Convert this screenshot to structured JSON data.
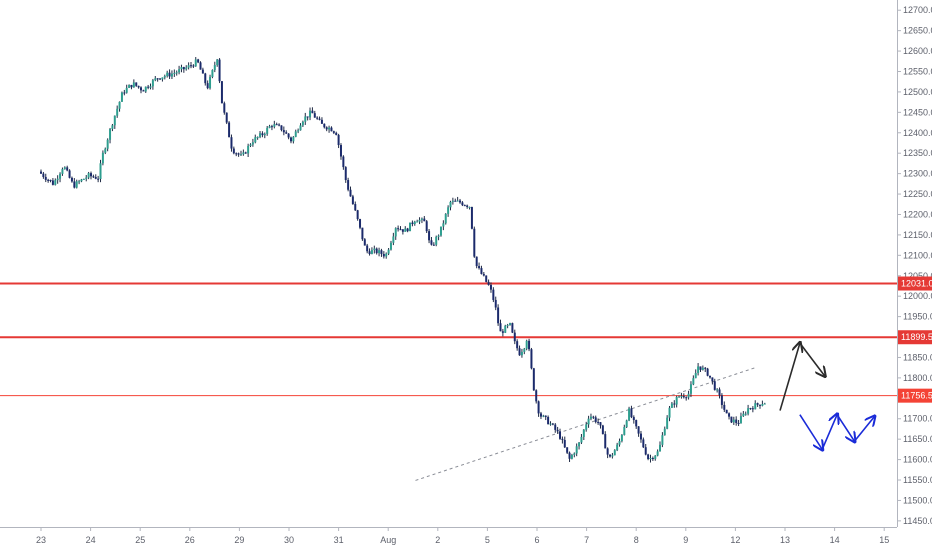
{
  "chart_data": {
    "type": "candlestick",
    "y_axis": {
      "ticks": [
        "12700.0",
        "12650.0",
        "12600.0",
        "12550.0",
        "12500.0",
        "12450.0",
        "12400.0",
        "12350.0",
        "12300.0",
        "12250.0",
        "12200.0",
        "12150.0",
        "12100.0",
        "12050.0",
        "12000.0",
        "11950.0",
        "11900.0",
        "11850.0",
        "11800.0",
        "11750.0",
        "11700.0",
        "11650.0",
        "11600.0",
        "11550.0",
        "11500.0",
        "11450.0"
      ],
      "range": [
        11435,
        12725
      ]
    },
    "x_axis": {
      "ticks": [
        "23",
        "24",
        "25",
        "26",
        "29",
        "30",
        "31",
        "Aug",
        "2",
        "5",
        "6",
        "7",
        "8",
        "9",
        "12",
        "13",
        "14",
        "15"
      ]
    },
    "price_levels": [
      {
        "label": "12031.0",
        "value": 12031.0,
        "color": "#e53935"
      },
      {
        "label": "11899.5",
        "value": 11899.5,
        "color": "#e53935"
      },
      {
        "label": "11756.5",
        "value": 11756.5,
        "color": "#f44336"
      }
    ],
    "trendline": {
      "from": [
        7.55,
        11549
      ],
      "to": [
        14.4,
        11825
      ],
      "style": "dashed"
    },
    "price_path": [
      [
        0.0,
        12305
      ],
      [
        0.3,
        12275
      ],
      [
        0.5,
        12320
      ],
      [
        0.7,
        12270
      ],
      [
        1.0,
        12295
      ],
      [
        1.2,
        12290
      ],
      [
        1.3,
        12350
      ],
      [
        1.5,
        12430
      ],
      [
        1.7,
        12500
      ],
      [
        1.9,
        12520
      ],
      [
        2.1,
        12505
      ],
      [
        2.4,
        12535
      ],
      [
        2.7,
        12545
      ],
      [
        3.0,
        12560
      ],
      [
        3.2,
        12575
      ],
      [
        3.4,
        12510
      ],
      [
        3.6,
        12585
      ],
      [
        3.7,
        12470
      ],
      [
        3.9,
        12360
      ],
      [
        4.1,
        12340
      ],
      [
        4.3,
        12380
      ],
      [
        4.5,
        12395
      ],
      [
        4.7,
        12420
      ],
      [
        4.9,
        12410
      ],
      [
        5.1,
        12380
      ],
      [
        5.3,
        12430
      ],
      [
        5.5,
        12450
      ],
      [
        5.7,
        12420
      ],
      [
        5.9,
        12410
      ],
      [
        6.0,
        12400
      ],
      [
        6.2,
        12280
      ],
      [
        6.4,
        12200
      ],
      [
        6.6,
        12110
      ],
      [
        6.8,
        12110
      ],
      [
        7.0,
        12100
      ],
      [
        7.2,
        12170
      ],
      [
        7.4,
        12160
      ],
      [
        7.6,
        12190
      ],
      [
        7.8,
        12180
      ],
      [
        7.9,
        12115
      ],
      [
        8.1,
        12160
      ],
      [
        8.3,
        12230
      ],
      [
        8.5,
        12230
      ],
      [
        8.7,
        12220
      ],
      [
        8.8,
        12080
      ],
      [
        8.9,
        12060
      ],
      [
        9.1,
        12020
      ],
      [
        9.2,
        11980
      ],
      [
        9.3,
        11910
      ],
      [
        9.5,
        11930
      ],
      [
        9.6,
        11885
      ],
      [
        9.7,
        11860
      ],
      [
        9.8,
        11880
      ],
      [
        9.85,
        11900
      ],
      [
        10.0,
        11760
      ],
      [
        10.1,
        11710
      ],
      [
        10.3,
        11690
      ],
      [
        10.5,
        11660
      ],
      [
        10.7,
        11600
      ],
      [
        10.9,
        11640
      ],
      [
        11.1,
        11710
      ],
      [
        11.3,
        11690
      ],
      [
        11.5,
        11600
      ],
      [
        11.7,
        11640
      ],
      [
        11.9,
        11720
      ],
      [
        12.1,
        11660
      ],
      [
        12.3,
        11600
      ],
      [
        12.5,
        11620
      ],
      [
        12.7,
        11720
      ],
      [
        12.9,
        11755
      ],
      [
        13.1,
        11760
      ],
      [
        13.3,
        11830
      ],
      [
        13.5,
        11810
      ],
      [
        13.7,
        11760
      ],
      [
        13.9,
        11700
      ],
      [
        14.1,
        11690
      ],
      [
        14.3,
        11725
      ],
      [
        14.5,
        11735
      ],
      [
        14.6,
        11740
      ]
    ],
    "projections": [
      {
        "color": "#2b2b2b",
        "points": [
          [
            14.9,
            11720
          ],
          [
            15.3,
            11885
          ],
          [
            15.8,
            11805
          ]
        ]
      },
      {
        "color": "#1a2bd8",
        "points": [
          [
            15.3,
            11710
          ],
          [
            15.75,
            11625
          ],
          [
            16.05,
            11710
          ],
          [
            16.4,
            11645
          ],
          [
            16.8,
            11705
          ]
        ]
      }
    ]
  }
}
